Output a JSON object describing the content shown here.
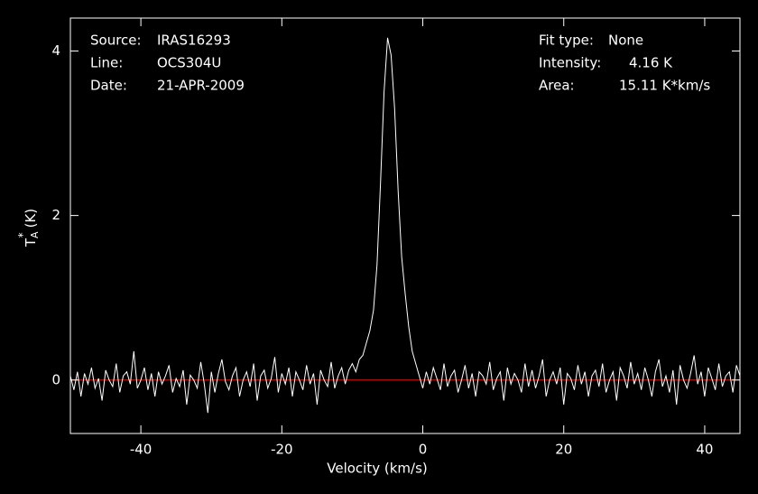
{
  "chart_data": {
    "type": "line",
    "x_label": "Velocity (km/s)",
    "y_label": {
      "symbol": "T",
      "subscript": "A",
      "superscript": "*",
      "unit": "(K)"
    },
    "annotations": [
      {
        "label": "Source:",
        "value": "IRAS16293"
      },
      {
        "label": "Line:",
        "value": "OCS304U"
      },
      {
        "label": "Date:",
        "value": "21-APR-2009"
      },
      {
        "label": "Fit type:",
        "value": "None"
      },
      {
        "label": "Intensity:",
        "value": "4.16 K"
      },
      {
        "label": "Area:",
        "value": "15.11 K*km/s"
      }
    ],
    "xlim": [
      -50,
      45
    ],
    "ylim": [
      -0.65,
      4.4
    ],
    "xticks": [
      -40,
      -20,
      0,
      20,
      40
    ],
    "yticks": [
      0,
      2,
      4
    ],
    "baseline": {
      "value": 0,
      "color": "#ff0000"
    },
    "series": [
      {
        "color": "#ffffff",
        "x": [
          -50,
          -49.5,
          -49,
          -48.5,
          -48,
          -47.5,
          -47,
          -46.5,
          -46,
          -45.5,
          -45,
          -44.5,
          -44,
          -43.5,
          -43,
          -42.5,
          -42,
          -41.5,
          -41,
          -40.5,
          -40,
          -39.5,
          -39,
          -38.5,
          -38,
          -37.5,
          -37,
          -36.5,
          -36,
          -35.5,
          -35,
          -34.5,
          -34,
          -33.5,
          -33,
          -32.5,
          -32,
          -31.5,
          -31,
          -30.5,
          -30,
          -29.5,
          -29,
          -28.5,
          -28,
          -27.5,
          -27,
          -26.5,
          -26,
          -25.5,
          -25,
          -24.5,
          -24,
          -23.5,
          -23,
          -22.5,
          -22,
          -21.5,
          -21,
          -20.5,
          -20,
          -19.5,
          -19,
          -18.5,
          -18,
          -17.5,
          -17,
          -16.5,
          -16,
          -15.5,
          -15,
          -14.5,
          -14,
          -13.5,
          -13,
          -12.5,
          -12,
          -11.5,
          -11,
          -10.5,
          -10,
          -9.5,
          -9,
          -8.5,
          -8,
          -7.5,
          -7,
          -6.5,
          -6,
          -5.5,
          -5,
          -4.5,
          -4,
          -3.5,
          -3,
          -2.5,
          -2,
          -1.5,
          -1,
          -0.5,
          0,
          0.5,
          1,
          1.5,
          2,
          2.5,
          3,
          3.5,
          4,
          4.5,
          5,
          5.5,
          6,
          6.5,
          7,
          7.5,
          8,
          8.5,
          9,
          9.5,
          10,
          10.5,
          11,
          11.5,
          12,
          12.5,
          13,
          13.5,
          14,
          14.5,
          15,
          15.5,
          16,
          16.5,
          17,
          17.5,
          18,
          18.5,
          19,
          19.5,
          20,
          20.5,
          21,
          21.5,
          22,
          22.5,
          23,
          23.5,
          24,
          24.5,
          25,
          25.5,
          26,
          26.5,
          27,
          27.5,
          28,
          28.5,
          29,
          29.5,
          30,
          30.5,
          31,
          31.5,
          32,
          32.5,
          33,
          33.5,
          34,
          34.5,
          35,
          35.5,
          36,
          36.5,
          37,
          37.5,
          38,
          38.5,
          39,
          39.5,
          40,
          40.5,
          41,
          41.5,
          42,
          42.5,
          43,
          43.5,
          44,
          44.5,
          45
        ],
        "values": [
          0.05,
          -0.12,
          0.1,
          -0.2,
          0.08,
          -0.05,
          0.15,
          -0.1,
          0.02,
          -0.25,
          0.12,
          0.0,
          -0.08,
          0.2,
          -0.15,
          0.05,
          0.1,
          -0.05,
          0.35,
          -0.1,
          0.0,
          0.15,
          -0.12,
          0.08,
          -0.2,
          0.1,
          -0.05,
          0.05,
          0.18,
          -0.15,
          0.02,
          -0.08,
          0.12,
          -0.3,
          0.06,
          0.0,
          -0.1,
          0.22,
          -0.05,
          -0.4,
          0.1,
          -0.15,
          0.08,
          0.25,
          -0.02,
          -0.12,
          0.05,
          0.15,
          -0.2,
          0.0,
          0.1,
          -0.08,
          0.2,
          -0.25,
          0.05,
          0.12,
          -0.1,
          0.02,
          0.28,
          -0.15,
          0.08,
          -0.05,
          0.15,
          -0.2,
          0.1,
          0.0,
          -0.12,
          0.18,
          -0.05,
          0.08,
          -0.3,
          0.12,
          0.0,
          -0.08,
          0.22,
          -0.1,
          0.05,
          0.15,
          -0.05,
          0.12,
          0.2,
          0.1,
          0.25,
          0.3,
          0.45,
          0.6,
          0.85,
          1.4,
          2.4,
          3.5,
          4.16,
          3.95,
          3.3,
          2.3,
          1.5,
          1.05,
          0.65,
          0.35,
          0.2,
          0.05,
          -0.1,
          0.1,
          -0.05,
          0.15,
          0.02,
          -0.12,
          0.2,
          -0.08,
          0.05,
          0.12,
          -0.15,
          0.0,
          0.18,
          -0.1,
          0.08,
          -0.2,
          0.1,
          0.05,
          -0.05,
          0.22,
          -0.12,
          0.02,
          0.1,
          -0.25,
          0.15,
          -0.05,
          0.08,
          0.0,
          -0.15,
          0.2,
          -0.08,
          0.12,
          -0.1,
          0.05,
          0.25,
          -0.2,
          0.0,
          0.1,
          -0.05,
          0.15,
          -0.3,
          0.08,
          0.02,
          -0.12,
          0.18,
          -0.05,
          0.1,
          -0.2,
          0.05,
          0.12,
          -0.08,
          0.2,
          -0.15,
          0.0,
          0.1,
          -0.25,
          0.15,
          0.05,
          -0.1,
          0.22,
          -0.05,
          0.08,
          -0.12,
          0.15,
          0.0,
          -0.2,
          0.1,
          0.25,
          -0.08,
          0.05,
          -0.15,
          0.12,
          -0.3,
          0.18,
          0.0,
          -0.1,
          0.08,
          0.3,
          -0.05,
          0.1,
          -0.2,
          0.15,
          0.02,
          -0.12,
          0.2,
          -0.08,
          0.05,
          0.1,
          -0.15,
          0.18,
          0.05
        ]
      }
    ]
  }
}
